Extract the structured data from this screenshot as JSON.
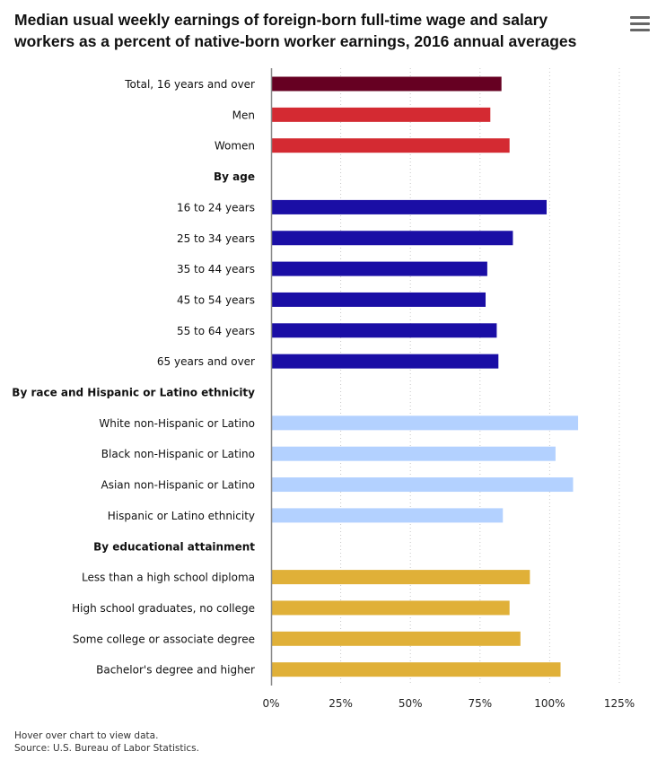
{
  "title_line1": "Median usual weekly earnings of foreign-born full-time wage and salary",
  "title_line2": "workers as a percent of native-born worker earnings, 2016 annual averages",
  "menu_icon": "hamburger-menu-icon",
  "footer": {
    "hover_note": "Hover over chart to view data.",
    "source": "Source: U.S. Bureau of Labor Statistics."
  },
  "chart_data": {
    "type": "bar",
    "orientation": "horizontal",
    "xlim": [
      0,
      125
    ],
    "xticks": [
      0,
      25,
      50,
      75,
      100,
      125
    ],
    "xtick_labels": [
      "0%",
      "25%",
      "50%",
      "75%",
      "100%",
      "125%"
    ],
    "grid": true,
    "colors": {
      "total": "#660022",
      "sex": "#d42a32",
      "age": "#1a0ea5",
      "race": "#b3d1ff",
      "education": "#e0b038"
    },
    "categories": [
      {
        "label": "Total, 16 years and over",
        "value": 82.7,
        "group": "total",
        "header": false
      },
      {
        "label": "Men",
        "value": 78.7,
        "group": "sex",
        "header": false
      },
      {
        "label": "Women",
        "value": 85.6,
        "group": "sex",
        "header": false
      },
      {
        "label": "By age",
        "value": null,
        "group": "",
        "header": true
      },
      {
        "label": "16 to 24 years",
        "value": 98.9,
        "group": "age",
        "header": false
      },
      {
        "label": "25 to 34 years",
        "value": 86.8,
        "group": "age",
        "header": false
      },
      {
        "label": "35 to 44 years",
        "value": 77.6,
        "group": "age",
        "header": false
      },
      {
        "label": "45 to 54 years",
        "value": 77.0,
        "group": "age",
        "header": false
      },
      {
        "label": "55 to 64 years",
        "value": 81.0,
        "group": "age",
        "header": false
      },
      {
        "label": "65 years and over",
        "value": 81.6,
        "group": "age",
        "header": false
      },
      {
        "label": "By race and Hispanic or Latino ethnicity",
        "value": null,
        "group": "",
        "header": true
      },
      {
        "label": "White non-Hispanic or Latino",
        "value": 110.2,
        "group": "race",
        "header": false
      },
      {
        "label": "Black non-Hispanic or Latino",
        "value": 102.1,
        "group": "race",
        "header": false
      },
      {
        "label": "Asian non-Hispanic or Latino",
        "value": 108.4,
        "group": "race",
        "header": false
      },
      {
        "label": "Hispanic or Latino ethnicity",
        "value": 83.2,
        "group": "race",
        "header": false
      },
      {
        "label": "By educational attainment",
        "value": null,
        "group": "",
        "header": true
      },
      {
        "label": "Less than a high school diploma",
        "value": 92.9,
        "group": "education",
        "header": false
      },
      {
        "label": "High school graduates, no college",
        "value": 85.6,
        "group": "education",
        "header": false
      },
      {
        "label": "Some college or associate degree",
        "value": 89.5,
        "group": "education",
        "header": false
      },
      {
        "label": "Bachelor's degree and higher",
        "value": 103.9,
        "group": "education",
        "header": false
      }
    ]
  }
}
